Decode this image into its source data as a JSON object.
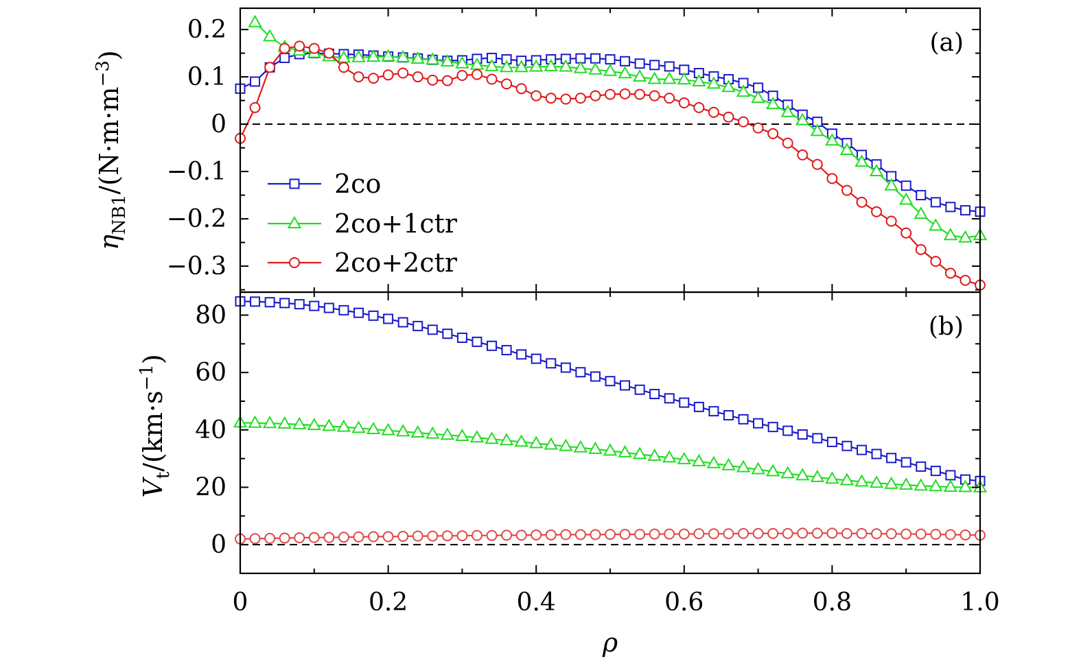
{
  "chart_data": [
    {
      "type": "line",
      "panel_label": "(a)",
      "ylabel": "ηNB1/(N·m·m−3)",
      "ylabel_main": "η",
      "ylabel_sub": "NB1",
      "ylabel_unit": "/(N·m·m",
      "ylabel_sup": "−3",
      "ylabel_close": ")",
      "xlabel": "",
      "xlim": [
        0,
        1.0
      ],
      "ylim": [
        -0.355,
        0.245
      ],
      "yticks": [
        0.2,
        0.1,
        0,
        -0.1,
        -0.2,
        -0.3
      ],
      "yticklabels": [
        "0.2",
        "0.1",
        "0",
        "−0.1",
        "−0.2",
        "−0.3"
      ],
      "zero_line": true,
      "legend_position": "left-center",
      "legend_labels": [
        "2co",
        "2co+1ctr",
        "2co+2ctr"
      ],
      "series": [
        {
          "name": "2co",
          "color": "#1a1acc",
          "marker": "square",
          "x": [
            0,
            0.02,
            0.04,
            0.06,
            0.08,
            0.1,
            0.12,
            0.14,
            0.16,
            0.18,
            0.2,
            0.22,
            0.24,
            0.26,
            0.28,
            0.3,
            0.32,
            0.34,
            0.36,
            0.38,
            0.4,
            0.42,
            0.44,
            0.46,
            0.48,
            0.5,
            0.52,
            0.54,
            0.56,
            0.58,
            0.6,
            0.62,
            0.64,
            0.66,
            0.68,
            0.7,
            0.72,
            0.74,
            0.76,
            0.78,
            0.8,
            0.82,
            0.84,
            0.86,
            0.88,
            0.9,
            0.92,
            0.94,
            0.96,
            0.98,
            1.0
          ],
          "values": [
            0.075,
            0.09,
            0.12,
            0.14,
            0.148,
            0.15,
            0.149,
            0.148,
            0.147,
            0.145,
            0.143,
            0.141,
            0.139,
            0.136,
            0.134,
            0.135,
            0.138,
            0.14,
            0.137,
            0.134,
            0.135,
            0.137,
            0.138,
            0.139,
            0.139,
            0.137,
            0.133,
            0.128,
            0.125,
            0.122,
            0.115,
            0.108,
            0.101,
            0.095,
            0.087,
            0.077,
            0.06,
            0.041,
            0.02,
            0.005,
            -0.02,
            -0.04,
            -0.065,
            -0.085,
            -0.11,
            -0.13,
            -0.15,
            -0.165,
            -0.175,
            -0.182,
            -0.185
          ]
        },
        {
          "name": "2co+1ctr",
          "color": "#22dd22",
          "marker": "triangle",
          "x": [
            0.02,
            0.04,
            0.06,
            0.08,
            0.1,
            0.12,
            0.14,
            0.16,
            0.18,
            0.2,
            0.22,
            0.24,
            0.26,
            0.28,
            0.3,
            0.32,
            0.34,
            0.36,
            0.38,
            0.4,
            0.42,
            0.44,
            0.46,
            0.48,
            0.5,
            0.52,
            0.54,
            0.56,
            0.58,
            0.6,
            0.62,
            0.64,
            0.66,
            0.68,
            0.7,
            0.72,
            0.74,
            0.76,
            0.78,
            0.8,
            0.82,
            0.84,
            0.86,
            0.88,
            0.9,
            0.92,
            0.94,
            0.96,
            0.98,
            1.0
          ],
          "values": [
            0.215,
            0.185,
            0.163,
            0.155,
            0.15,
            0.143,
            0.14,
            0.141,
            0.142,
            0.143,
            0.141,
            0.138,
            0.136,
            0.132,
            0.128,
            0.125,
            0.122,
            0.12,
            0.12,
            0.121,
            0.122,
            0.121,
            0.118,
            0.115,
            0.112,
            0.107,
            0.1,
            0.095,
            0.095,
            0.094,
            0.09,
            0.085,
            0.078,
            0.068,
            0.055,
            0.042,
            0.025,
            0.008,
            -0.015,
            -0.035,
            -0.055,
            -0.08,
            -0.1,
            -0.13,
            -0.16,
            -0.19,
            -0.215,
            -0.235,
            -0.24,
            -0.235
          ]
        },
        {
          "name": "2co+2ctr",
          "color": "#e01818",
          "marker": "circle",
          "x": [
            0,
            0.02,
            0.04,
            0.06,
            0.08,
            0.1,
            0.12,
            0.14,
            0.16,
            0.18,
            0.2,
            0.22,
            0.24,
            0.26,
            0.28,
            0.3,
            0.32,
            0.34,
            0.36,
            0.38,
            0.4,
            0.42,
            0.44,
            0.46,
            0.48,
            0.5,
            0.52,
            0.54,
            0.56,
            0.58,
            0.6,
            0.62,
            0.64,
            0.66,
            0.68,
            0.7,
            0.72,
            0.74,
            0.76,
            0.78,
            0.8,
            0.82,
            0.84,
            0.86,
            0.88,
            0.9,
            0.92,
            0.94,
            0.96,
            0.98,
            1.0
          ],
          "values": [
            -0.03,
            0.035,
            0.12,
            0.16,
            0.165,
            0.16,
            0.15,
            0.12,
            0.1,
            0.097,
            0.104,
            0.108,
            0.1,
            0.093,
            0.092,
            0.103,
            0.105,
            0.095,
            0.085,
            0.075,
            0.06,
            0.055,
            0.053,
            0.055,
            0.06,
            0.063,
            0.064,
            0.063,
            0.06,
            0.055,
            0.045,
            0.035,
            0.025,
            0.015,
            0.005,
            -0.008,
            -0.02,
            -0.04,
            -0.065,
            -0.085,
            -0.115,
            -0.14,
            -0.165,
            -0.185,
            -0.205,
            -0.23,
            -0.265,
            -0.29,
            -0.315,
            -0.33,
            -0.34
          ]
        }
      ]
    },
    {
      "type": "line",
      "panel_label": "(b)",
      "ylabel": "Vt/(km·s−1)",
      "ylabel_main": "V",
      "ylabel_sub": "t",
      "ylabel_unit": "/(km·s",
      "ylabel_sup": "−1",
      "ylabel_close": ")",
      "xlabel": "ρ",
      "xlim": [
        0,
        1.0
      ],
      "ylim": [
        -10,
        88
      ],
      "xticks": [
        0,
        0.2,
        0.4,
        0.6,
        0.8,
        1.0
      ],
      "xticklabels": [
        "0",
        "0.2",
        "0.4",
        "0.6",
        "0.8",
        "1.0"
      ],
      "yticks": [
        80,
        60,
        40,
        20,
        0
      ],
      "yticklabels": [
        "80",
        "60",
        "40",
        "20",
        "0"
      ],
      "zero_line": true,
      "series": [
        {
          "name": "2co",
          "color": "#1a1acc",
          "marker": "square",
          "x": [
            0,
            0.02,
            0.04,
            0.06,
            0.08,
            0.1,
            0.12,
            0.14,
            0.16,
            0.18,
            0.2,
            0.22,
            0.24,
            0.26,
            0.28,
            0.3,
            0.32,
            0.34,
            0.36,
            0.38,
            0.4,
            0.42,
            0.44,
            0.46,
            0.48,
            0.5,
            0.52,
            0.54,
            0.56,
            0.58,
            0.6,
            0.62,
            0.64,
            0.66,
            0.68,
            0.7,
            0.72,
            0.74,
            0.76,
            0.78,
            0.8,
            0.82,
            0.84,
            0.86,
            0.88,
            0.9,
            0.92,
            0.94,
            0.96,
            0.98,
            1.0
          ],
          "values": [
            84.8,
            84.7,
            84.5,
            84.2,
            83.8,
            83.2,
            82.5,
            81.7,
            80.8,
            79.8,
            78.7,
            77.5,
            76.2,
            74.9,
            73.5,
            72.1,
            70.7,
            69.3,
            67.8,
            66.3,
            64.8,
            63.2,
            61.7,
            60.1,
            58.6,
            57.0,
            55.5,
            54.0,
            52.5,
            51.0,
            49.5,
            48.0,
            46.5,
            45.1,
            43.7,
            42.3,
            41.0,
            39.7,
            38.4,
            37.1,
            35.8,
            34.4,
            33.0,
            31.6,
            30.2,
            28.7,
            27.2,
            25.7,
            24.2,
            22.7,
            22.2
          ]
        },
        {
          "name": "2co+1ctr",
          "color": "#22dd22",
          "marker": "triangle",
          "x": [
            0,
            0.02,
            0.04,
            0.06,
            0.08,
            0.1,
            0.12,
            0.14,
            0.16,
            0.18,
            0.2,
            0.22,
            0.24,
            0.26,
            0.28,
            0.3,
            0.32,
            0.34,
            0.36,
            0.38,
            0.4,
            0.42,
            0.44,
            0.46,
            0.48,
            0.5,
            0.52,
            0.54,
            0.56,
            0.58,
            0.6,
            0.62,
            0.64,
            0.66,
            0.68,
            0.7,
            0.72,
            0.74,
            0.76,
            0.78,
            0.8,
            0.82,
            0.84,
            0.86,
            0.88,
            0.9,
            0.92,
            0.94,
            0.96,
            0.98,
            1.0
          ],
          "values": [
            42.5,
            42.4,
            42.3,
            42.1,
            41.9,
            41.6,
            41.3,
            41.0,
            40.6,
            40.2,
            39.8,
            39.4,
            39.0,
            38.6,
            38.2,
            37.8,
            37.3,
            36.8,
            36.3,
            35.8,
            35.3,
            34.8,
            34.3,
            33.8,
            33.3,
            32.7,
            32.1,
            31.5,
            30.9,
            30.3,
            29.7,
            29.0,
            28.3,
            27.6,
            26.9,
            26.2,
            25.5,
            24.8,
            24.1,
            23.5,
            22.9,
            22.4,
            21.9,
            21.5,
            21.1,
            20.8,
            20.5,
            20.3,
            20.1,
            20.0,
            19.9
          ]
        },
        {
          "name": "2co+2ctr",
          "color": "#e04848",
          "marker": "circle",
          "x": [
            0,
            0.02,
            0.04,
            0.06,
            0.08,
            0.1,
            0.12,
            0.14,
            0.16,
            0.18,
            0.2,
            0.22,
            0.24,
            0.26,
            0.28,
            0.3,
            0.32,
            0.34,
            0.36,
            0.38,
            0.4,
            0.42,
            0.44,
            0.46,
            0.48,
            0.5,
            0.52,
            0.54,
            0.56,
            0.58,
            0.6,
            0.62,
            0.64,
            0.66,
            0.68,
            0.7,
            0.72,
            0.74,
            0.76,
            0.78,
            0.8,
            0.82,
            0.84,
            0.86,
            0.88,
            0.9,
            0.92,
            0.94,
            0.96,
            0.98,
            1.0
          ],
          "values": [
            2.0,
            2.1,
            2.2,
            2.3,
            2.4,
            2.5,
            2.5,
            2.6,
            2.7,
            2.8,
            2.8,
            2.9,
            3.0,
            3.0,
            3.1,
            3.1,
            3.2,
            3.2,
            3.3,
            3.3,
            3.4,
            3.4,
            3.5,
            3.5,
            3.5,
            3.6,
            3.6,
            3.6,
            3.7,
            3.7,
            3.7,
            3.8,
            3.8,
            3.8,
            3.9,
            3.9,
            3.9,
            3.9,
            4.0,
            4.0,
            4.0,
            3.9,
            3.9,
            3.8,
            3.8,
            3.7,
            3.7,
            3.6,
            3.5,
            3.4,
            3.3
          ]
        }
      ]
    }
  ]
}
